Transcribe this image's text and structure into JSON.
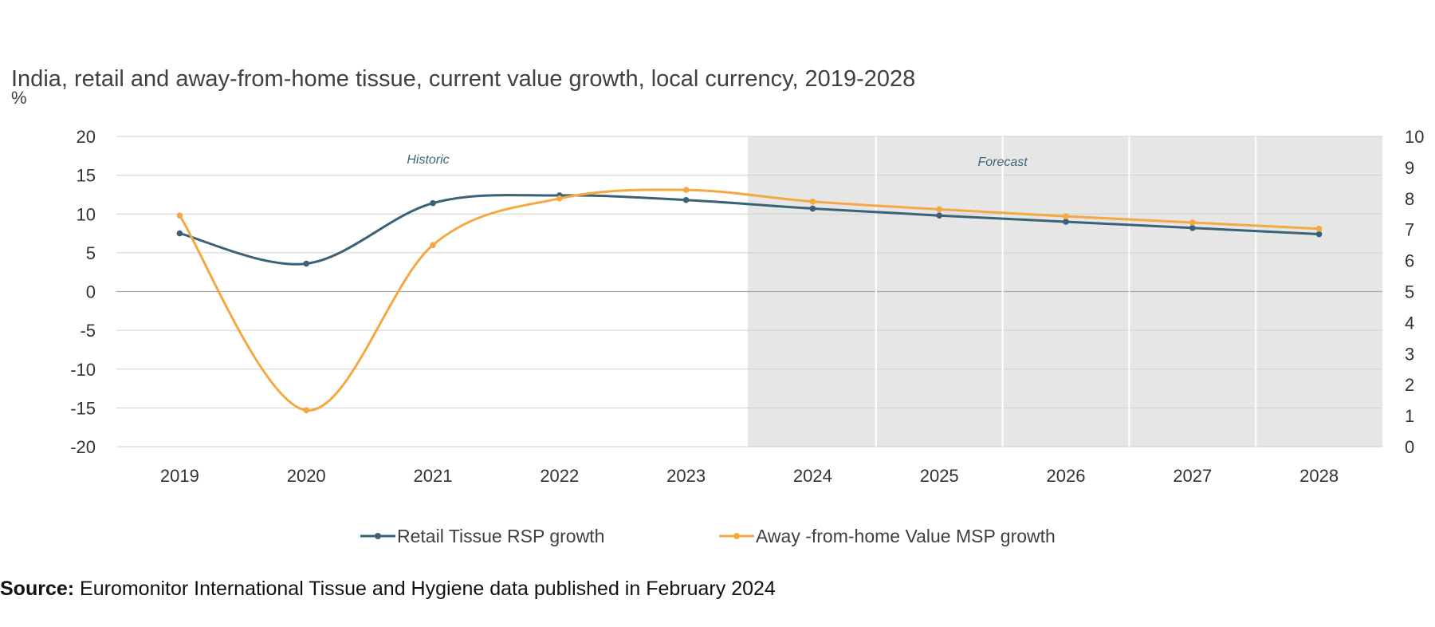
{
  "chart_data": {
    "type": "line",
    "title": "India, retail and away-from-home tissue, current value growth, local currency, 2019-2028",
    "ylabel": "%",
    "categories": [
      "2019",
      "2020",
      "2021",
      "2022",
      "2023",
      "2024",
      "2025",
      "2026",
      "2027",
      "2028"
    ],
    "ylim": [
      -20,
      20
    ],
    "yticks": [
      "20",
      "15",
      "10",
      "5",
      "0",
      "-5",
      "-10",
      "-15",
      "-20"
    ],
    "y2lim": [
      0,
      10
    ],
    "y2ticks": [
      "10",
      "9",
      "8",
      "7",
      "6",
      "5",
      "4",
      "3",
      "2",
      "1",
      "0"
    ],
    "grid": true,
    "legend_position": "bottom",
    "annotations": [
      "Historic",
      "Forecast"
    ],
    "forecast_start": "2024",
    "series": [
      {
        "name": "Retail Tissue RSP growth",
        "color": "#3b6178",
        "values": [
          7.5,
          3.6,
          11.4,
          12.4,
          11.8,
          10.7,
          9.8,
          9.0,
          8.2,
          7.4
        ]
      },
      {
        "name": "Away -from-home Value MSP growth",
        "color": "#f5a742",
        "values": [
          9.8,
          -15.3,
          6.0,
          12.0,
          13.1,
          11.6,
          10.6,
          9.7,
          8.9,
          8.1
        ]
      }
    ]
  },
  "source": {
    "label": "Source:",
    "text": " Euromonitor International Tissue and Hygiene data published in February 2024"
  }
}
